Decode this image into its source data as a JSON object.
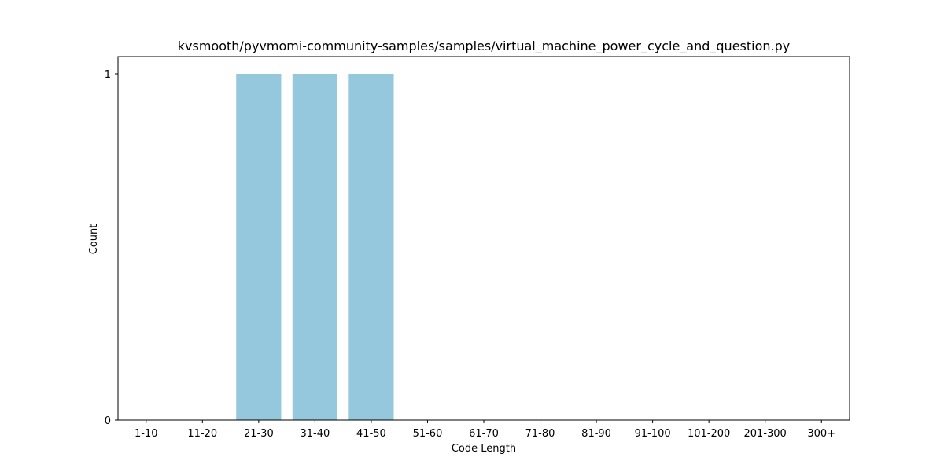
{
  "chart_data": {
    "type": "bar",
    "title": "kvsmooth/pyvmomi-community-samples/samples/virtual_machine_power_cycle_and_question.py",
    "xlabel": "Code Length",
    "ylabel": "Count",
    "categories": [
      "1-10",
      "11-20",
      "21-30",
      "31-40",
      "41-50",
      "51-60",
      "61-70",
      "71-80",
      "81-90",
      "91-100",
      "101-200",
      "201-300",
      "300+"
    ],
    "values": [
      0,
      0,
      1,
      1,
      1,
      0,
      0,
      0,
      0,
      0,
      0,
      0,
      0
    ],
    "ylim": [
      0,
      1
    ],
    "yticks": [
      0,
      1
    ],
    "bar_color": "#95c8dc",
    "grid": false,
    "legend": "none"
  }
}
